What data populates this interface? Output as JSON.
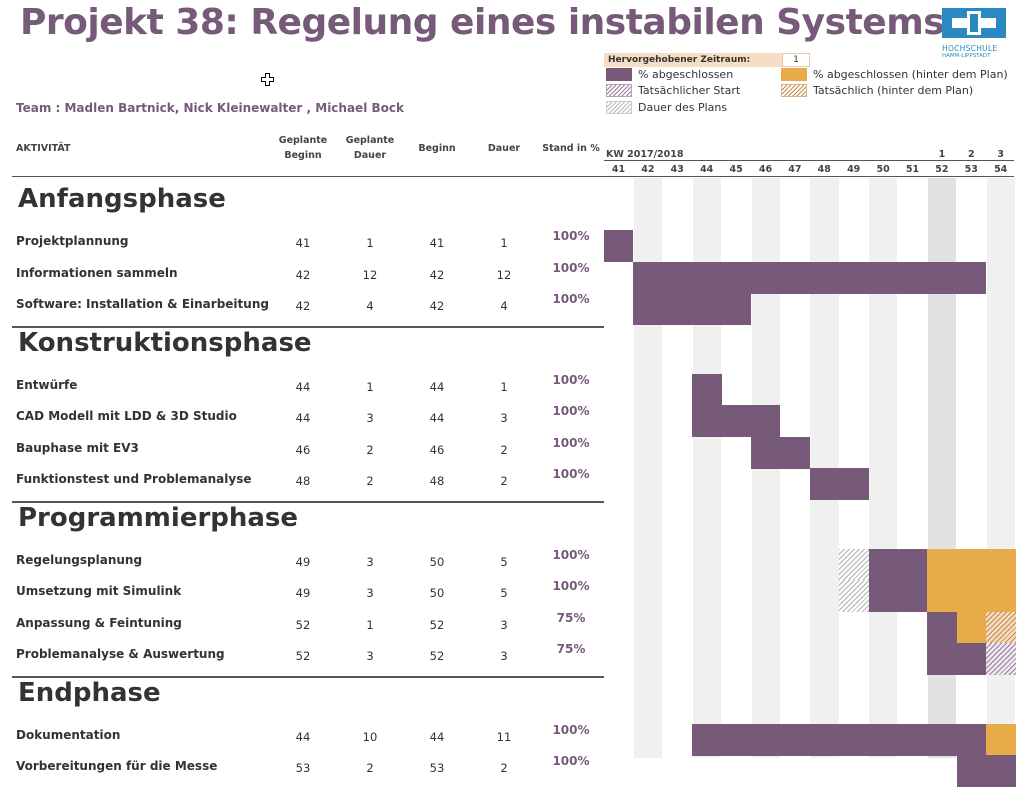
{
  "title": "Projekt 38: Regelung eines instabilen Systems",
  "team": "Team : Madlen Bartnick, Nick Kleinewalter , Michael Bock",
  "logo": {
    "line1": "HOCHSCHULE",
    "line2": "HAMM-LIPPSTADT",
    "brand_color": "#2c88c0"
  },
  "legend": {
    "period_label": "Hervorgehobener Zeitraum:",
    "period_value": "1",
    "items": {
      "done": "% abgeschlossen",
      "done_late": "% abgeschlossen (hinter dem Plan)",
      "actual_start": "Tatsächlicher Start",
      "actual_late": "Tatsächlich (hinter dem Plan)",
      "plan_duration": "Dauer des Plans"
    }
  },
  "headers": {
    "activity": "AKTIVITÄT",
    "planned_start_1": "Geplante",
    "planned_start_2": "Beginn",
    "planned_duration_1": "Geplante",
    "planned_duration_2": "Dauer",
    "start": "Beginn",
    "duration": "Dauer",
    "status": "Stand in %",
    "kw": "KW 2017/2018"
  },
  "years": [
    "1",
    "2",
    "3"
  ],
  "weeks": [
    "41",
    "42",
    "43",
    "44",
    "45",
    "46",
    "47",
    "48",
    "49",
    "50",
    "51",
    "52",
    "53",
    "54"
  ],
  "phases": [
    {
      "name": "Anfangsphase",
      "tasks": [
        {
          "name": "Projektplannung",
          "plan_start": "41",
          "plan_dur": "1",
          "start": "41",
          "dur": "1",
          "pct": "100%"
        },
        {
          "name": "Informationen sammeln",
          "plan_start": "42",
          "plan_dur": "12",
          "start": "42",
          "dur": "12",
          "pct": "100%"
        },
        {
          "name": "Software: Installation & Einarbeitung",
          "plan_start": "42",
          "plan_dur": "4",
          "start": "42",
          "dur": "4",
          "pct": "100%"
        }
      ]
    },
    {
      "name": "Konstruktionsphase",
      "tasks": [
        {
          "name": "Entwürfe",
          "plan_start": "44",
          "plan_dur": "1",
          "start": "44",
          "dur": "1",
          "pct": "100%"
        },
        {
          "name": "CAD Modell mit LDD & 3D Studio",
          "plan_start": "44",
          "plan_dur": "3",
          "start": "44",
          "dur": "3",
          "pct": "100%"
        },
        {
          "name": "Bauphase mit EV3",
          "plan_start": "46",
          "plan_dur": "2",
          "start": "46",
          "dur": "2",
          "pct": "100%"
        },
        {
          "name": "Funktionstest und Problemanalyse",
          "plan_start": "48",
          "plan_dur": "2",
          "start": "48",
          "dur": "2",
          "pct": "100%"
        }
      ]
    },
    {
      "name": "Programmierphase",
      "tasks": [
        {
          "name": "Regelungsplanung",
          "plan_start": "49",
          "plan_dur": "3",
          "start": "50",
          "dur": "5",
          "pct": "100%"
        },
        {
          "name": "Umsetzung mit Simulink",
          "plan_start": "49",
          "plan_dur": "3",
          "start": "50",
          "dur": "5",
          "pct": "100%"
        },
        {
          "name": "Anpassung & Feintuning",
          "plan_start": "52",
          "plan_dur": "1",
          "start": "52",
          "dur": "3",
          "pct": "75%"
        },
        {
          "name": "Problemanalyse & Auswertung",
          "plan_start": "52",
          "plan_dur": "3",
          "start": "52",
          "dur": "3",
          "pct": "75%"
        }
      ]
    },
    {
      "name": "Endphase",
      "tasks": [
        {
          "name": "Dokumentation",
          "plan_start": "44",
          "plan_dur": "10",
          "start": "44",
          "dur": "11",
          "pct": "100%"
        },
        {
          "name": "Vorbereitungen für die Messe",
          "plan_start": "53",
          "plan_dur": "2",
          "start": "53",
          "dur": "2",
          "pct": "100%"
        }
      ]
    }
  ],
  "gantt_segments": [
    {
      "row": "0.0",
      "week": 41,
      "span": 1,
      "kind": "done"
    },
    {
      "row": "0.1",
      "week": 42,
      "span": 12,
      "kind": "done"
    },
    {
      "row": "0.2",
      "week": 42,
      "span": 4,
      "kind": "done"
    },
    {
      "row": "1.0",
      "week": 44,
      "span": 1,
      "kind": "done"
    },
    {
      "row": "1.1",
      "week": 44,
      "span": 3,
      "kind": "done"
    },
    {
      "row": "1.2",
      "week": 46,
      "span": 2,
      "kind": "done"
    },
    {
      "row": "1.3",
      "week": 48,
      "span": 2,
      "kind": "done"
    },
    {
      "row": "2.0",
      "week": 49,
      "span": 1,
      "kind": "plan"
    },
    {
      "row": "2.0",
      "week": 50,
      "span": 2,
      "kind": "done"
    },
    {
      "row": "2.0",
      "week": 52,
      "span": 3,
      "kind": "late"
    },
    {
      "row": "2.1",
      "week": 49,
      "span": 1,
      "kind": "plan"
    },
    {
      "row": "2.1",
      "week": 50,
      "span": 2,
      "kind": "done"
    },
    {
      "row": "2.1",
      "week": 52,
      "span": 3,
      "kind": "late"
    },
    {
      "row": "2.2",
      "week": 52,
      "span": 1,
      "kind": "done"
    },
    {
      "row": "2.2",
      "week": 53,
      "span": 1,
      "kind": "late"
    },
    {
      "row": "2.2",
      "week": 54,
      "span": 1,
      "kind": "actual_late"
    },
    {
      "row": "2.3",
      "week": 52,
      "span": 2,
      "kind": "done"
    },
    {
      "row": "2.3",
      "week": 54,
      "span": 1,
      "kind": "actual"
    },
    {
      "row": "3.0",
      "week": 44,
      "span": 10,
      "kind": "done"
    },
    {
      "row": "3.0",
      "week": 54,
      "span": 1,
      "kind": "late"
    },
    {
      "row": "3.1",
      "week": 53,
      "span": 2,
      "kind": "done"
    }
  ],
  "colors": {
    "purple": "#775a7a",
    "orange": "#e8ab49"
  }
}
